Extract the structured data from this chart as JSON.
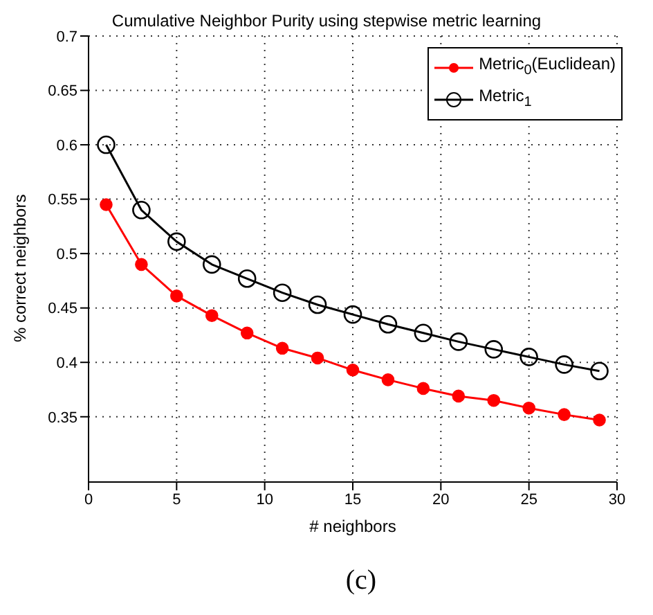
{
  "chart_data": {
    "type": "line",
    "title": "Cumulative Neighbor Purity using stepwise metric learning",
    "xlabel": "# neighbors",
    "ylabel": "% correct neighbors",
    "annotations": [
      "(c)"
    ],
    "x": [
      1,
      3,
      5,
      7,
      9,
      11,
      13,
      15,
      17,
      19,
      21,
      23,
      25,
      27,
      29
    ],
    "series": [
      {
        "name": "Metric$_{0}$(Euclidean)",
        "color": "#ff0000",
        "marker": "circle",
        "values": [
          0.545,
          0.49,
          0.461,
          0.443,
          0.427,
          0.413,
          0.404,
          0.393,
          0.384,
          0.376,
          0.369,
          0.365,
          0.358,
          0.352,
          0.347
        ]
      },
      {
        "name": "Metric$_{1}$",
        "color": "#000000",
        "marker": "circle",
        "values": [
          0.6,
          0.54,
          0.511,
          0.49,
          0.477,
          0.464,
          0.453,
          0.444,
          0.435,
          0.427,
          0.419,
          0.412,
          0.405,
          0.398,
          0.392
        ]
      }
    ],
    "xlim": [
      0,
      30
    ],
    "xticks": [
      0,
      5,
      10,
      15,
      20,
      25,
      30
    ],
    "ylim": [
      0.29,
      0.7
    ],
    "yticks": [
      0.35,
      0.4,
      0.45,
      0.5,
      0.55,
      0.6,
      0.65,
      0.7
    ],
    "grid": true,
    "legend": "top right",
    "line_style": "solid"
  }
}
